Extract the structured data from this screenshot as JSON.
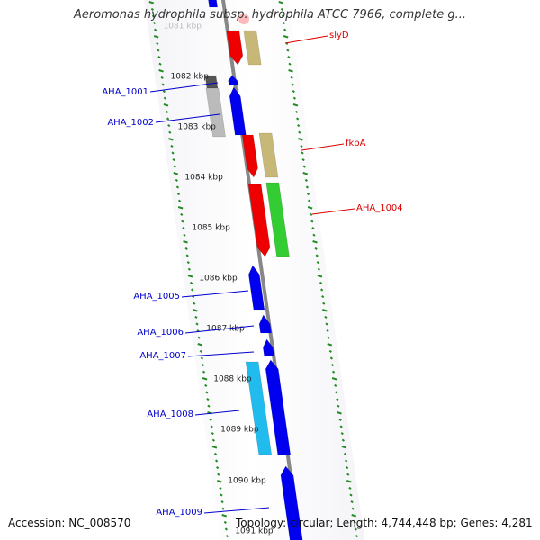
{
  "title": "Aeromonas hydrophila subsp. hydrophila ATCC 7966, complete g...",
  "footer": {
    "accession": "Accession: NC_008570",
    "topology": "Topology: circular; Length: 4,744,448 bp; Genes: 4,281"
  },
  "colors": {
    "forward_label": "#0000cc",
    "reverse_label": "#dd0000",
    "backbone": "#888888",
    "ticks": "#228b22"
  },
  "scale": {
    "labels": [
      "1081 kbp",
      "1082 kbp",
      "1083 kbp",
      "1084 kbp",
      "1085 kbp",
      "1086 kbp",
      "1087 kbp",
      "1088 kbp",
      "1089 kbp",
      "1090 kbp",
      "1091 kbp"
    ]
  },
  "genes": [
    {
      "label": "AHA_1001",
      "strand": "forward",
      "color": "#0000ee"
    },
    {
      "label": "AHA_1002",
      "strand": "forward",
      "color": "#0000ee"
    },
    {
      "label": "slyD",
      "strand": "reverse",
      "color": "#ee0000"
    },
    {
      "label": "fkpA",
      "strand": "reverse",
      "color": "#ee0000"
    },
    {
      "label": "AHA_1004",
      "strand": "reverse",
      "color": "#ee0000"
    },
    {
      "label": "AHA_1005",
      "strand": "forward",
      "color": "#0000ee"
    },
    {
      "label": "AHA_1006",
      "strand": "forward",
      "color": "#0000ee"
    },
    {
      "label": "AHA_1007",
      "strand": "forward",
      "color": "#0000ee"
    },
    {
      "label": "AHA_1008",
      "strand": "forward",
      "color": "#0000ee"
    },
    {
      "label": "AHA_1009",
      "strand": "forward",
      "color": "#0000ee"
    }
  ]
}
